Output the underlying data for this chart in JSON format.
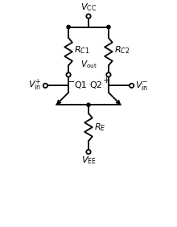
{
  "bg_color": "#ffffff",
  "line_color": "#000000",
  "lw": 1.3,
  "figsize": [
    2.2,
    2.82
  ],
  "dpi": 100,
  "vcc_label": "$V_{\\mathrm{CC}}$",
  "vee_label": "$V_{\\mathrm{EE}}$",
  "rc1_label": "$R_{C1}$",
  "rc2_label": "$R_{C2}$",
  "re_label": "$R_{E}$",
  "q1_label": "Q1",
  "q2_label": "Q2",
  "vout_label": "$V_{\\mathrm{out}}$",
  "vin_plus_label": "$V_{\\mathrm{in}}^{+}$",
  "vin_minus_label": "$V_{\\mathrm{in}}^{-}$",
  "minus_label": "$-$",
  "plus_label": "$+$"
}
